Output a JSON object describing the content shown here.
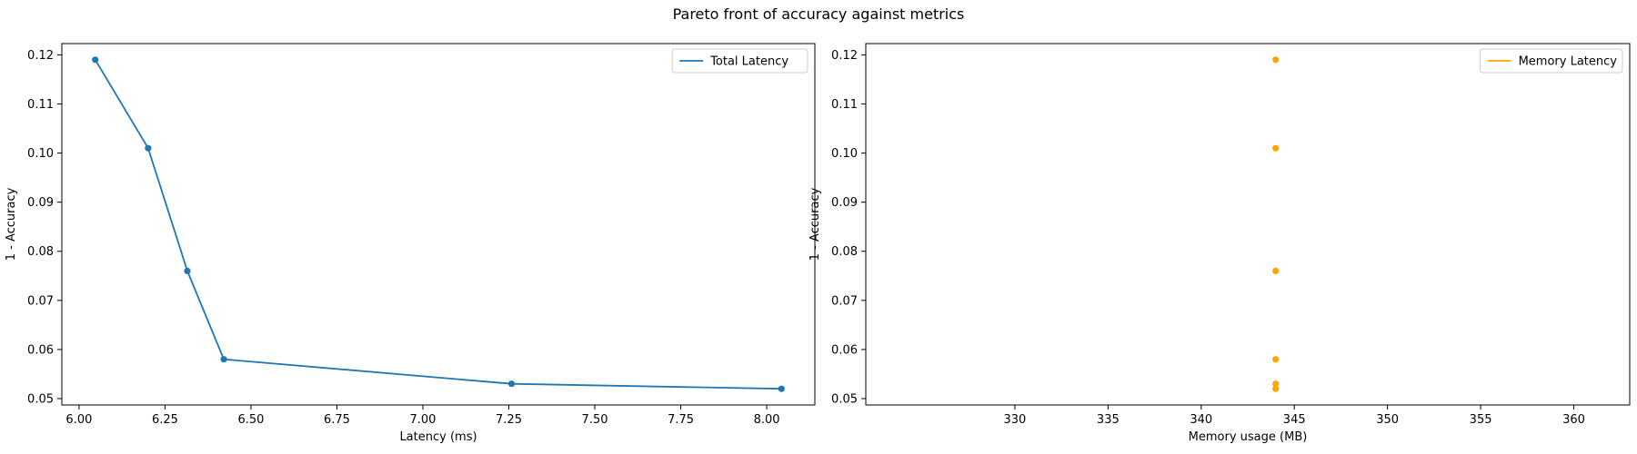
{
  "figure": {
    "title": "Pareto front of accuracy against metrics"
  },
  "chart_data": [
    {
      "type": "line",
      "title": "",
      "xlabel": "Latency (ms)",
      "ylabel": "1 - Accuracy",
      "xlim": [
        5.95,
        8.14
      ],
      "ylim": [
        0.0487,
        0.1223
      ],
      "xticks": [
        "6.00",
        "6.25",
        "6.50",
        "6.75",
        "7.00",
        "7.25",
        "7.50",
        "7.75",
        "8.00"
      ],
      "yticks": [
        "0.05",
        "0.06",
        "0.07",
        "0.08",
        "0.09",
        "0.10",
        "0.11",
        "0.12"
      ],
      "legend": {
        "placement": "upper-right",
        "entries": [
          "Total Latency"
        ]
      },
      "grid": false,
      "series": [
        {
          "name": "Total Latency",
          "color": "#1f77b4",
          "x": [
            6.047,
            6.201,
            6.315,
            6.421,
            7.258,
            8.043
          ],
          "y": [
            0.119,
            0.101,
            0.076,
            0.058,
            0.053,
            0.052
          ]
        }
      ]
    },
    {
      "type": "scatter",
      "title": "",
      "xlabel": "Memory usage (MB)",
      "ylabel": "1 - Accuracy",
      "xlim": [
        322.0,
        363.0
      ],
      "ylim": [
        0.0487,
        0.1223
      ],
      "xticks": [
        "330",
        "335",
        "340",
        "345",
        "350",
        "355",
        "360"
      ],
      "yticks": [
        "0.05",
        "0.06",
        "0.07",
        "0.08",
        "0.09",
        "0.10",
        "0.11",
        "0.12"
      ],
      "legend": {
        "placement": "upper-right",
        "entries": [
          "Memory Latency"
        ]
      },
      "grid": false,
      "series": [
        {
          "name": "Memory Latency",
          "color": "#ffa500",
          "x": [
            344,
            344,
            344,
            344,
            344,
            344
          ],
          "y": [
            0.119,
            0.101,
            0.076,
            0.058,
            0.053,
            0.052
          ]
        }
      ]
    }
  ]
}
